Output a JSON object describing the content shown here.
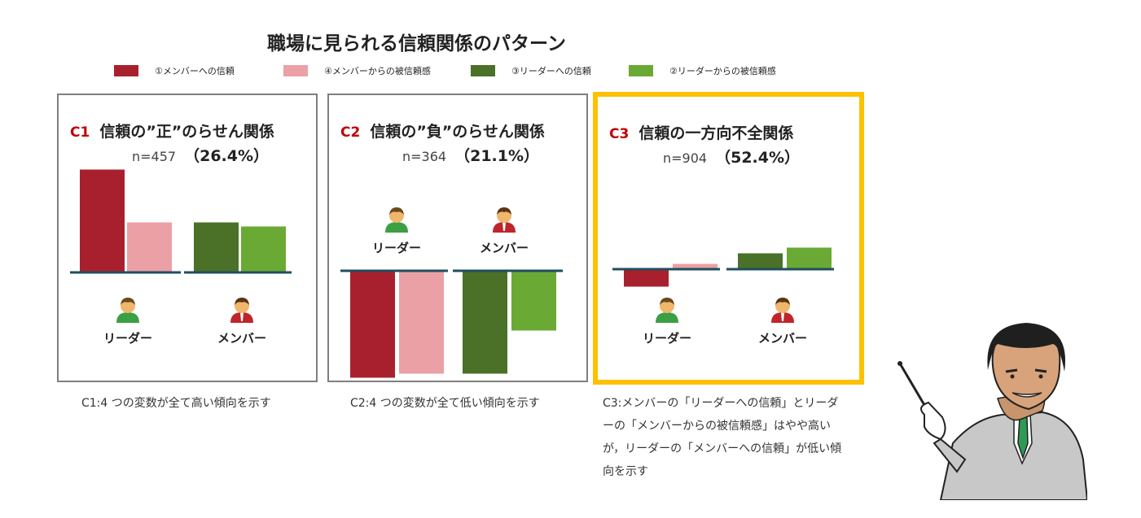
{
  "title": "職場に見られる信頼関係のパターン",
  "legend": [
    {
      "label": "①メンバーへの信頼",
      "color": "#a8202e"
    },
    {
      "label": "④メンバーからの被信頼感",
      "color": "#eba0a6"
    },
    {
      "label": "③リーダーへの信頼",
      "color": "#4a7127"
    },
    {
      "label": "②リーダーからの被信頼感",
      "color": "#6aaa34"
    }
  ],
  "roles": {
    "leader": "リーダー",
    "member": "メンバー"
  },
  "panels": [
    {
      "code": "C1",
      "name": "信頼の”正”のらせん関係",
      "n": "n=457",
      "pct": "（26.4%）",
      "desc": "C1:4 つの変数が全て高い傾向を示す"
    },
    {
      "code": "C2",
      "name": "信頼の”負”のらせん関係",
      "n": "n=364",
      "pct": "（21.1%）",
      "desc": "C2:4 つの変数が全て低い傾向を示す"
    },
    {
      "code": "C3",
      "name": "信頼の一方向不全関係",
      "n": "n=904",
      "pct": "（52.4%）",
      "desc": "C3:メンバーの「リーダーへの信頼」とリーダーの「メンバーからの被信頼感」はやや高いが，リーダーの「メンバーへの信頼」が低い傾向を示す"
    }
  ],
  "chart_data": [
    {
      "type": "bar",
      "title": "C1 信頼の”正”のらせん関係",
      "categories": [
        "リーダー",
        "メンバー"
      ],
      "series": [
        {
          "name": "①メンバーへの信頼",
          "values": [
            1.25,
            null
          ]
        },
        {
          "name": "④メンバーからの被信頼感",
          "values": [
            0.6,
            null
          ]
        },
        {
          "name": "③リーダーへの信頼",
          "values": [
            null,
            0.6
          ]
        },
        {
          "name": "②リーダーからの被信頼感",
          "values": [
            null,
            0.55
          ]
        }
      ],
      "ylim": [
        -1.4,
        1.4
      ],
      "grid": false
    },
    {
      "type": "bar",
      "title": "C2 信頼の”負”のらせん関係",
      "categories": [
        "リーダー",
        "メンバー"
      ],
      "series": [
        {
          "name": "①メンバーへの信頼",
          "values": [
            -1.3,
            null
          ]
        },
        {
          "name": "④メンバーからの被信頼感",
          "values": [
            -1.25,
            null
          ]
        },
        {
          "name": "③リーダーへの信頼",
          "values": [
            null,
            -1.25
          ]
        },
        {
          "name": "②リーダーからの被信頼感",
          "values": [
            null,
            -0.72
          ]
        }
      ],
      "ylim": [
        -1.4,
        1.4
      ],
      "grid": false
    },
    {
      "type": "bar",
      "title": "C3 信頼の一方向不全関係",
      "categories": [
        "リーダー",
        "メンバー"
      ],
      "series": [
        {
          "name": "①メンバーへの信頼",
          "values": [
            -0.2,
            null
          ]
        },
        {
          "name": "④メンバーからの被信頼感",
          "values": [
            0.05,
            null
          ]
        },
        {
          "name": "③リーダーへの信頼",
          "values": [
            null,
            0.18
          ]
        },
        {
          "name": "②リーダーからの被信頼感",
          "values": [
            null,
            0.25
          ]
        }
      ],
      "ylim": [
        -1.4,
        1.4
      ],
      "grid": false
    }
  ],
  "colors": {
    "border_normal": "#7f7f7f",
    "border_highlight": "#ffc000",
    "baseline": "#1f4e5f"
  }
}
